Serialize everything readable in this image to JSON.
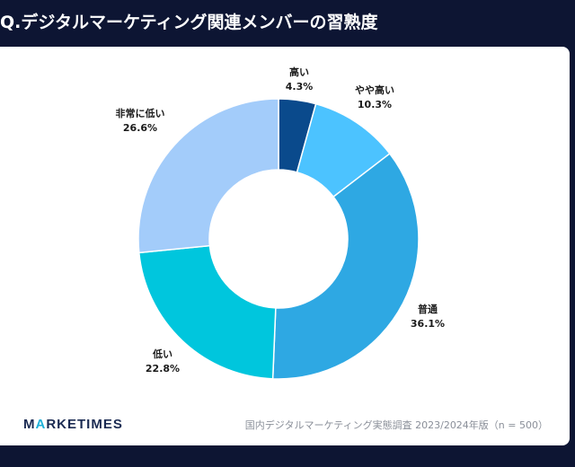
{
  "header": {
    "title": "Q.デジタルマーケティング関連メンバーの習熟度"
  },
  "footer": {
    "brand_pre": "M",
    "brand_accent": "A",
    "brand_post": "RKETIMES",
    "source": "国内デジタルマーケティング実態調査 2023/2024年版（n = 500）"
  },
  "chart_data": {
    "type": "pie",
    "donut": true,
    "categories": [
      "高い",
      "やや高い",
      "普通",
      "低い",
      "非常に低い"
    ],
    "values": [
      4.3,
      10.3,
      36.1,
      22.8,
      26.6
    ],
    "value_labels": [
      "4.3%",
      "10.3%",
      "36.1%",
      "22.8%",
      "26.6%"
    ],
    "colors": [
      "#0a4a8c",
      "#4cc3ff",
      "#2ea8e3",
      "#00c6dd",
      "#a3ccfa"
    ],
    "title": "",
    "legend": "none"
  }
}
